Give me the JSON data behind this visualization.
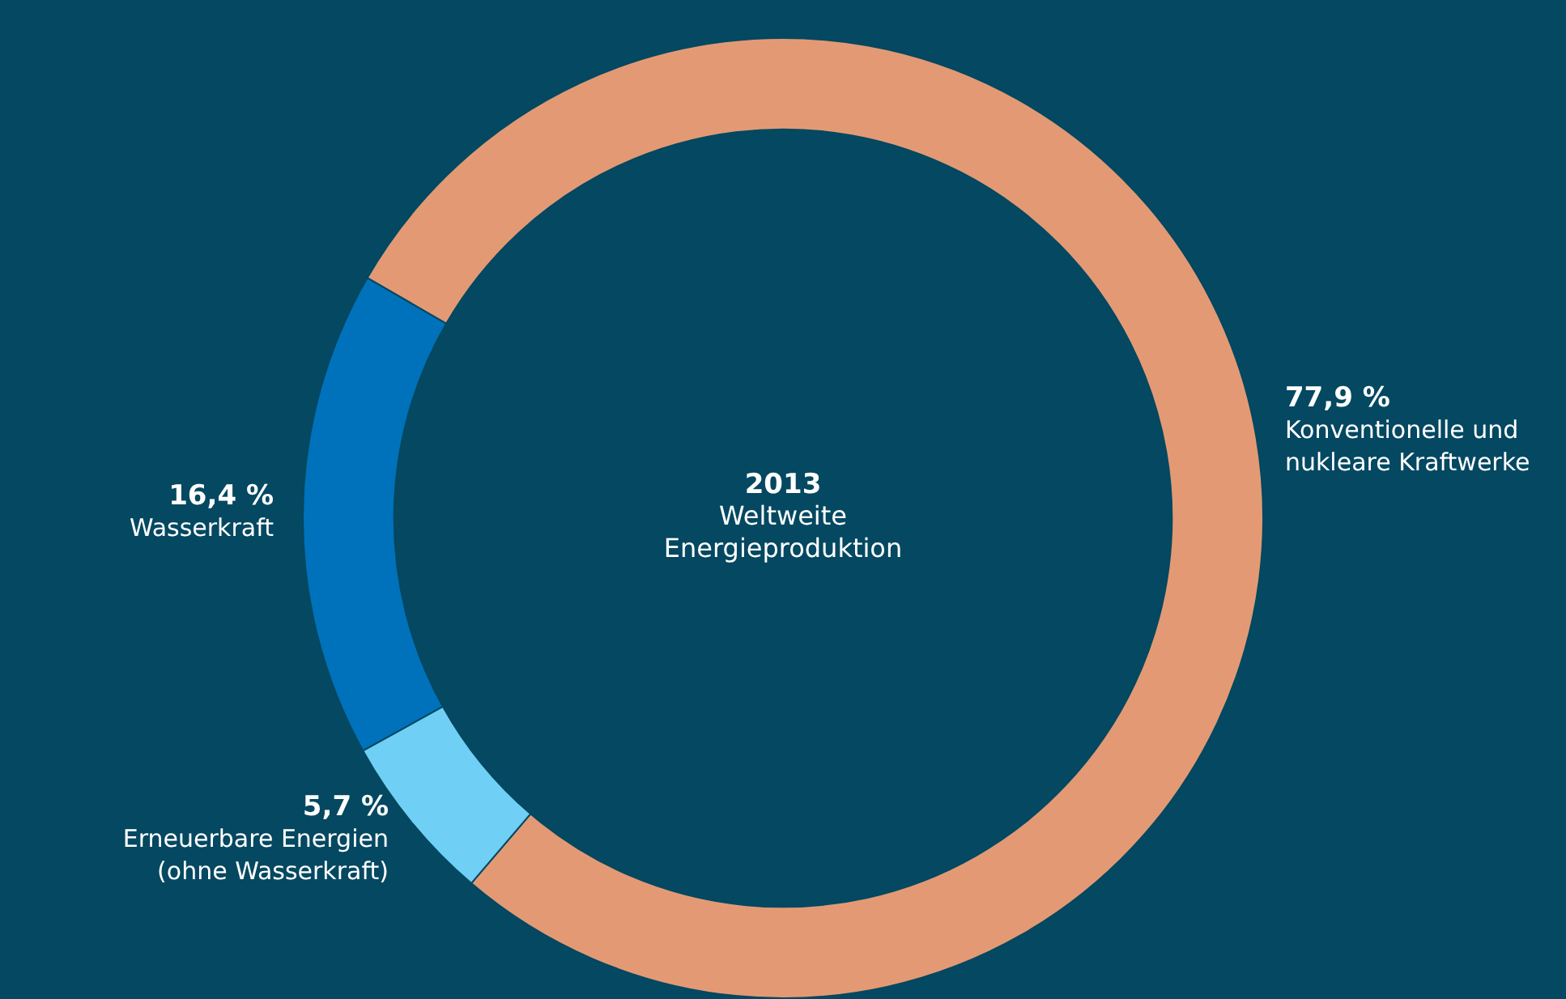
{
  "chart_data": {
    "type": "donut",
    "title": "2013",
    "subtitle": "Weltweite Energieproduktion",
    "categories": [
      "Wasserkraft",
      "Konventionelle und nukleare Kraftwerke",
      "Erneuerbare Energien (ohne Wasserkraft)"
    ],
    "values": [
      16.4,
      77.9,
      5.7
    ],
    "value_labels": [
      "16,4 %",
      "77,9 %",
      "5,7 %"
    ],
    "colors": [
      "#0072bb",
      "#e39a74",
      "#6fcff5"
    ],
    "legend": false
  }
}
